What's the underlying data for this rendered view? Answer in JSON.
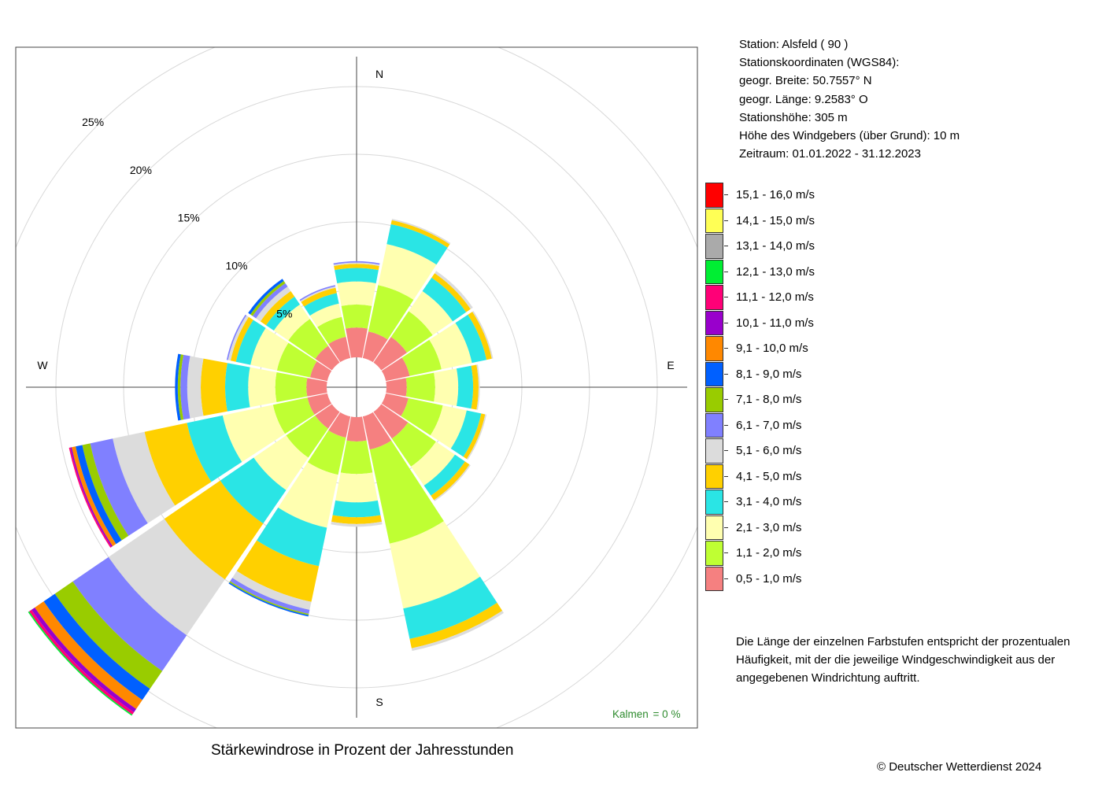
{
  "chart_data": {
    "type": "wind-rose",
    "title": "Stärkewindrose in Prozent der Jahresstunden",
    "directions": [
      "N",
      "NNE",
      "NE",
      "ENE",
      "E",
      "ESE",
      "SE",
      "SSE",
      "S",
      "SSW",
      "SW",
      "WSW",
      "W",
      "WNW",
      "NW",
      "NNW"
    ],
    "compass_labels": {
      "N": "N",
      "E": "E",
      "S": "S",
      "W": "W"
    },
    "ring_labels": [
      "5%",
      "10%",
      "15%",
      "20%",
      "25%"
    ],
    "ring_values": [
      5,
      10,
      15,
      20,
      25
    ],
    "calm": {
      "label": "Kalmen",
      "value": "= 0 %"
    },
    "bins": [
      {
        "label": "0,5 - 1,0 m/s",
        "color": "#f58080"
      },
      {
        "label": "1,1 - 2,0 m/s",
        "color": "#bfff33"
      },
      {
        "label": "2,1 - 3,0 m/s",
        "color": "#ffffb0"
      },
      {
        "label": "3,1 - 4,0 m/s",
        "color": "#2ae5e5"
      },
      {
        "label": "4,1 - 5,0 m/s",
        "color": "#ffd000"
      },
      {
        "label": "5,1 - 6,0 m/s",
        "color": "#dcdcdc"
      },
      {
        "label": "6,1 - 7,0 m/s",
        "color": "#8080ff"
      },
      {
        "label": "7,1 - 8,0 m/s",
        "color": "#99cc00"
      },
      {
        "label": "8,1 - 9,0 m/s",
        "color": "#0060ff"
      },
      {
        "label": "9,1 - 10,0 m/s",
        "color": "#ff8800"
      },
      {
        "label": "10,1 - 11,0 m/s",
        "color": "#9900cc"
      },
      {
        "label": "11,1 - 12,0 m/s",
        "color": "#ff0077"
      },
      {
        "label": "12,1 - 13,0 m/s",
        "color": "#00ee33"
      },
      {
        "label": "13,1 - 14,0 m/s",
        "color": "#aaaaaa"
      },
      {
        "label": "14,1 - 15,0 m/s",
        "color": "#ffff55"
      },
      {
        "label": "15,1 - 16,0 m/s",
        "color": "#ff0000"
      }
    ],
    "series_cumulative": [
      [
        2.2,
        3.9,
        5.6,
        6.6,
        6.9,
        7.0,
        7.1
      ],
      [
        2.0,
        5.5,
        8.6,
        10.1,
        10.4,
        10.5
      ],
      [
        2.3,
        4.6,
        6.4,
        7.6,
        8.0,
        8.2
      ],
      [
        1.8,
        4.2,
        6.5,
        7.6,
        8.0,
        8.1
      ],
      [
        1.5,
        3.6,
        5.3,
        6.4,
        6.8,
        6.9
      ],
      [
        1.7,
        4.3,
        6.1,
        7.2,
        7.5,
        7.6
      ],
      [
        2.4,
        4.9,
        6.6,
        7.5,
        7.9,
        8.0
      ],
      [
        2.5,
        9.6,
        14.5,
        16.8,
        17.5,
        17.7
      ],
      [
        1.8,
        4.2,
        6.3,
        7.4,
        7.9,
        8.1
      ],
      [
        1.6,
        4.4,
        8.4,
        11.3,
        14.0,
        14.6,
        14.9,
        15.0,
        15.1
      ],
      [
        1.5,
        4.1,
        7.0,
        10.0,
        15.0,
        20.0,
        23.2,
        24.8,
        25.8,
        26.6,
        26.9,
        27.1,
        27.2
      ],
      [
        1.5,
        4.1,
        7.9,
        10.6,
        13.8,
        16.2,
        17.9,
        18.5,
        19.0,
        19.3,
        19.4,
        19.5
      ],
      [
        1.5,
        3.8,
        5.8,
        7.5,
        9.3,
        10.3,
        10.8,
        11.0,
        11.2
      ],
      [
        1.3,
        3.8,
        5.8,
        6.9,
        7.3,
        7.5,
        7.6
      ],
      [
        1.5,
        3.9,
        5.2,
        5.9,
        6.4,
        6.8,
        7.1,
        7.3,
        7.5
      ],
      [
        1.6,
        3.1,
        4.1,
        4.9,
        5.3,
        5.4,
        5.5
      ]
    ]
  },
  "station_info": [
    "Station:  Alsfeld  ( 90 )",
    "Stationskoordinaten (WGS84):",
    "geogr. Breite: 50.7557° N",
    "geogr. Länge:   9.2583° O",
    "Stationshöhe: 305 m",
    "Höhe des Windgebers (über Grund): 10 m",
    "Zeitraum: 01.01.2022 - 31.12.2023"
  ],
  "explanation": [
    "Die Länge der einzelnen Farbstufen entspricht der prozentualen",
    "Häufigkeit, mit der die jeweilige Windgeschwindigkeit aus der",
    "angegebenen Windrichtung auftritt."
  ],
  "copyright": "© Deutscher Wetterdienst  2024"
}
